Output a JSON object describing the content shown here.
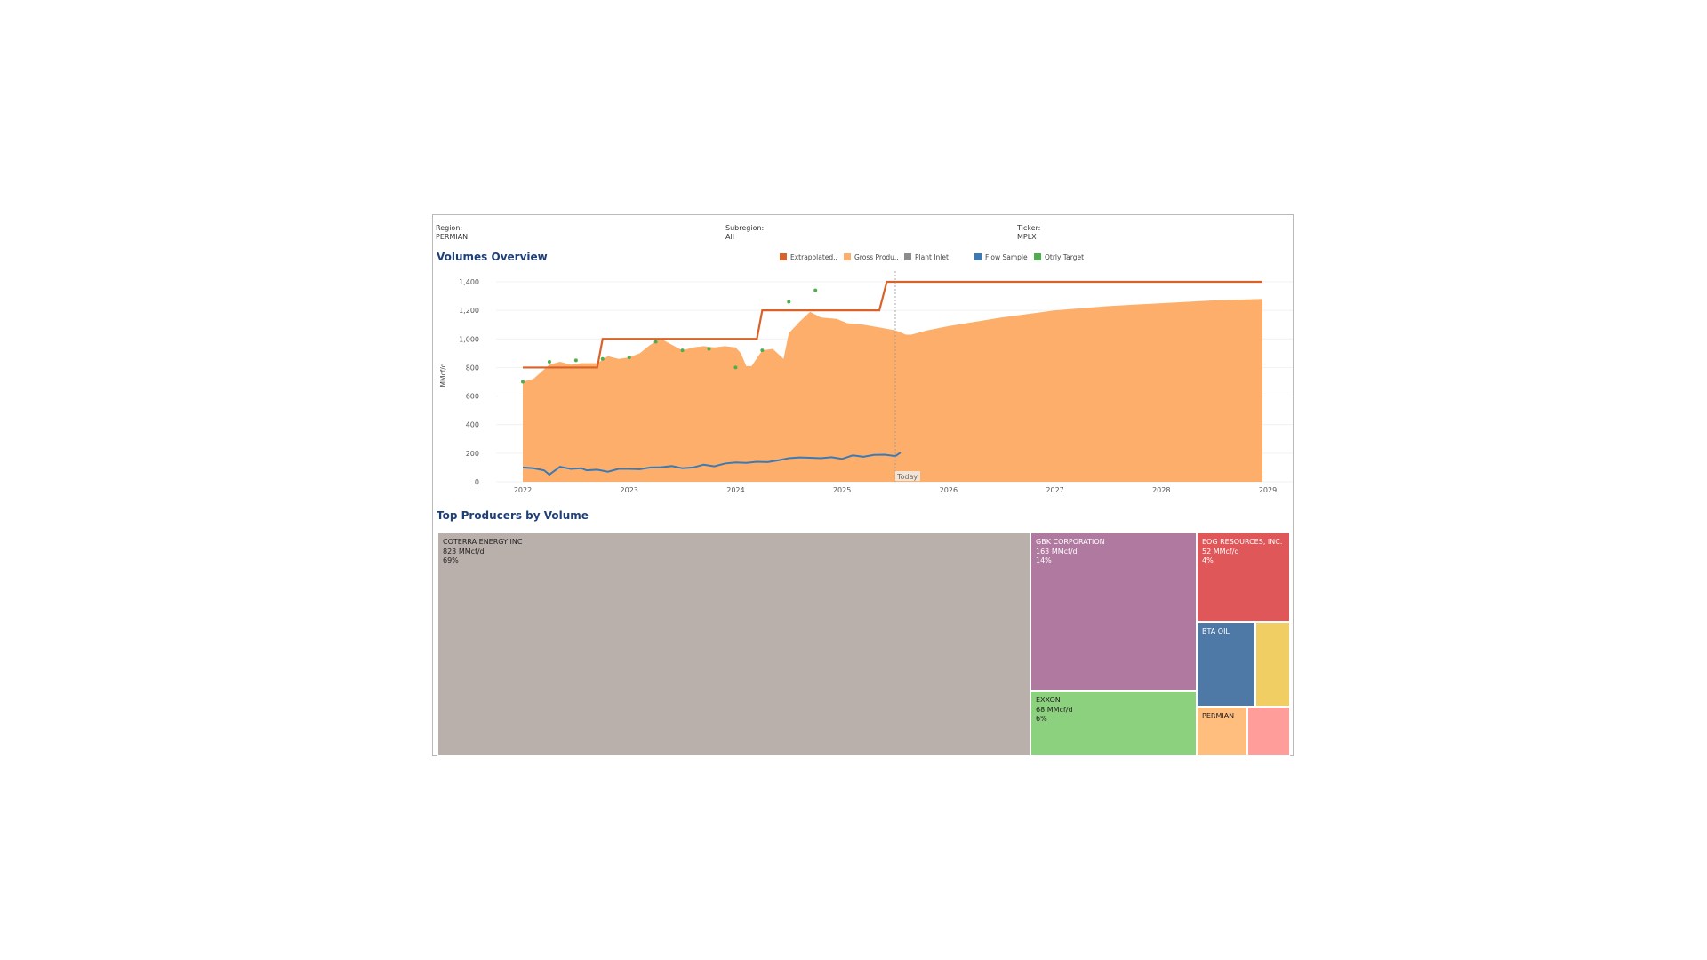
{
  "filters": [
    {
      "label": "Region:",
      "value": "PERMIAN"
    },
    {
      "label": "Subregion:",
      "value": "All"
    },
    {
      "label": "Ticker:",
      "value": "MPLX"
    }
  ],
  "volumes_title": "Volumes Overview",
  "producers_title": "Top Producers by Volume",
  "colors": {
    "extrapolated": "#d9622b",
    "gross": "#fdae6b",
    "plant_inlet": "#8c8c8c",
    "flow_sample": "#3b7ab5",
    "qtrly_target": "#4cae4c"
  },
  "chart_data": [
    {
      "type": "area",
      "title": "Volumes Overview",
      "ylabel": "MMcf/d",
      "xlabel": "",
      "ylim": [
        0,
        1400
      ],
      "xlim": [
        2022,
        2029
      ],
      "yticks": [
        0,
        200,
        400,
        600,
        800,
        "1,000",
        "1,200",
        "1,400"
      ],
      "xticks": [
        "2022",
        "2023",
        "2024",
        "2025",
        "2026",
        "2027",
        "2028",
        "2029"
      ],
      "today_marker": {
        "x": 2025.5,
        "label": "Today"
      },
      "legend": [
        "Extrapolated..",
        "Gross Produ..",
        "Plant Inlet",
        "Flow Sample",
        "Qtrly Target"
      ],
      "series": [
        {
          "name": "Gross Production",
          "type": "area",
          "points": [
            [
              2022.0,
              700
            ],
            [
              2022.1,
              720
            ],
            [
              2022.25,
              820
            ],
            [
              2022.35,
              840
            ],
            [
              2022.45,
              820
            ],
            [
              2022.55,
              830
            ],
            [
              2022.7,
              830
            ],
            [
              2022.8,
              880
            ],
            [
              2022.9,
              860
            ],
            [
              2023.0,
              870
            ],
            [
              2023.1,
              900
            ],
            [
              2023.2,
              960
            ],
            [
              2023.3,
              1000
            ],
            [
              2023.4,
              960
            ],
            [
              2023.5,
              920
            ],
            [
              2023.6,
              940
            ],
            [
              2023.7,
              950
            ],
            [
              2023.8,
              940
            ],
            [
              2023.9,
              950
            ],
            [
              2024.0,
              940
            ],
            [
              2024.05,
              900
            ],
            [
              2024.1,
              810
            ],
            [
              2024.15,
              810
            ],
            [
              2024.25,
              920
            ],
            [
              2024.35,
              930
            ],
            [
              2024.45,
              860
            ],
            [
              2024.5,
              1040
            ],
            [
              2024.6,
              1120
            ],
            [
              2024.7,
              1190
            ],
            [
              2024.8,
              1150
            ],
            [
              2024.95,
              1140
            ],
            [
              2025.05,
              1110
            ],
            [
              2025.2,
              1100
            ],
            [
              2025.35,
              1080
            ],
            [
              2025.5,
              1060
            ],
            [
              2025.6,
              1030
            ],
            [
              2025.65,
              1030
            ],
            [
              2025.8,
              1060
            ],
            [
              2026.0,
              1090
            ],
            [
              2026.5,
              1150
            ],
            [
              2027.0,
              1200
            ],
            [
              2027.5,
              1230
            ],
            [
              2028.0,
              1250
            ],
            [
              2028.5,
              1270
            ],
            [
              2028.95,
              1280
            ]
          ]
        },
        {
          "name": "Extrapolated",
          "type": "line",
          "points": [
            [
              2022.0,
              800
            ],
            [
              2022.7,
              800
            ],
            [
              2022.75,
              1000
            ],
            [
              2024.2,
              1000
            ],
            [
              2024.25,
              1200
            ],
            [
              2025.35,
              1200
            ],
            [
              2025.42,
              1400
            ],
            [
              2028.95,
              1400
            ]
          ]
        },
        {
          "name": "Flow Sample",
          "type": "line",
          "points": [
            [
              2022.0,
              100
            ],
            [
              2022.1,
              95
            ],
            [
              2022.2,
              80
            ],
            [
              2022.25,
              50
            ],
            [
              2022.35,
              105
            ],
            [
              2022.45,
              90
            ],
            [
              2022.55,
              95
            ],
            [
              2022.6,
              80
            ],
            [
              2022.7,
              85
            ],
            [
              2022.8,
              70
            ],
            [
              2022.9,
              90
            ],
            [
              2023.0,
              90
            ],
            [
              2023.1,
              88
            ],
            [
              2023.2,
              100
            ],
            [
              2023.3,
              102
            ],
            [
              2023.4,
              110
            ],
            [
              2023.5,
              95
            ],
            [
              2023.6,
              100
            ],
            [
              2023.7,
              120
            ],
            [
              2023.8,
              108
            ],
            [
              2023.9,
              128
            ],
            [
              2024.0,
              135
            ],
            [
              2024.1,
              132
            ],
            [
              2024.2,
              140
            ],
            [
              2024.3,
              138
            ],
            [
              2024.4,
              150
            ],
            [
              2024.5,
              165
            ],
            [
              2024.6,
              170
            ],
            [
              2024.7,
              168
            ],
            [
              2024.8,
              165
            ],
            [
              2024.9,
              172
            ],
            [
              2025.0,
              160
            ],
            [
              2025.1,
              185
            ],
            [
              2025.2,
              175
            ],
            [
              2025.3,
              188
            ],
            [
              2025.4,
              190
            ],
            [
              2025.5,
              180
            ],
            [
              2025.55,
              205
            ]
          ]
        },
        {
          "name": "Qtrly Target",
          "type": "scatter",
          "points": [
            [
              2022.0,
              700
            ],
            [
              2022.25,
              840
            ],
            [
              2022.5,
              850
            ],
            [
              2022.75,
              860
            ],
            [
              2023.0,
              870
            ],
            [
              2023.25,
              980
            ],
            [
              2023.5,
              920
            ],
            [
              2023.75,
              930
            ],
            [
              2024.0,
              800
            ],
            [
              2024.25,
              920
            ],
            [
              2024.5,
              1260
            ],
            [
              2024.75,
              1340
            ]
          ]
        }
      ]
    },
    {
      "type": "treemap",
      "title": "Top Producers by Volume",
      "items": [
        {
          "name": "COTERRA ENERGY INC",
          "value": 823,
          "value_label": "823 MMcf/d",
          "pct": "69%",
          "color": "#b9b0ab",
          "text_color": "#222222"
        },
        {
          "name": "GBK CORPORATION",
          "value": 163,
          "value_label": "163 MMcf/d",
          "pct": "14%",
          "color": "#b07aa0",
          "text_color": "#ffffff"
        },
        {
          "name": "EOG RESOURCES, INC.",
          "value": 52,
          "value_label": "52 MMcf/d",
          "pct": "4%",
          "color": "#e0575a",
          "text_color": "#ffffff"
        },
        {
          "name": "BTA OIL",
          "value": 30,
          "value_label": "",
          "pct": "",
          "color": "#4e79a7",
          "text_color": "#ffffff"
        },
        {
          "name": "",
          "value": 15,
          "value_label": "",
          "pct": "",
          "color": "#f1ce63",
          "text_color": "#222222"
        },
        {
          "name": "EXXON",
          "value": 68,
          "value_label": "68 MMcf/d",
          "pct": "6%",
          "color": "#8cd17d",
          "text_color": "#222222"
        },
        {
          "name": "PERMIAN",
          "value": 14,
          "value_label": "",
          "pct": "",
          "color": "#ffbe7d",
          "text_color": "#222222"
        },
        {
          "name": "",
          "value": 10,
          "value_label": "",
          "pct": "",
          "color": "#ff9d9a",
          "text_color": "#222222"
        }
      ]
    }
  ]
}
